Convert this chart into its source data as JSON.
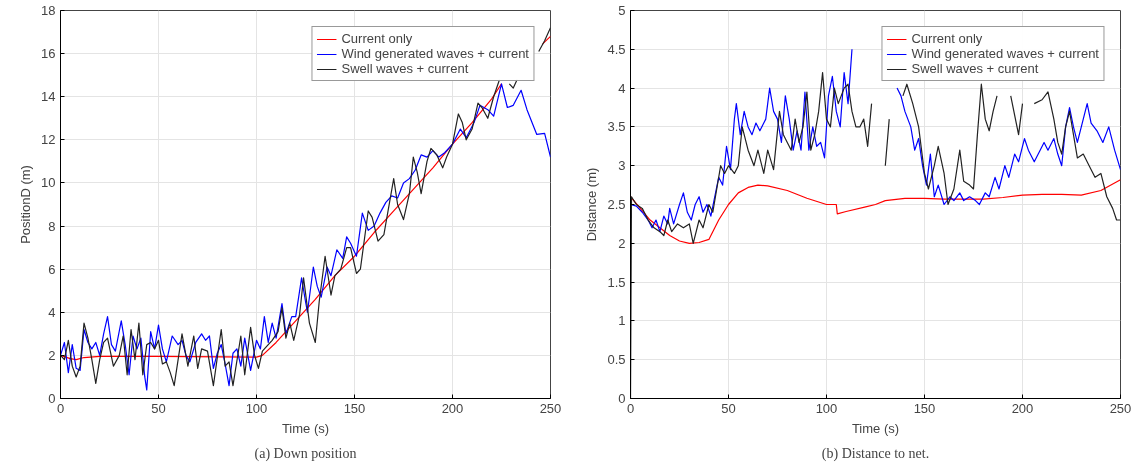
{
  "chart_data": [
    {
      "type": "line",
      "title": "(a) Down position",
      "xlabel": "Time (s)",
      "ylabel": "PositionD (m)",
      "xlim": [
        0,
        250
      ],
      "ylim": [
        0,
        18
      ],
      "xticks": [
        0,
        50,
        100,
        150,
        200,
        250
      ],
      "yticks": [
        0,
        2,
        4,
        6,
        8,
        10,
        12,
        14,
        16,
        18
      ],
      "grid": true,
      "legend": "top right",
      "series": [
        {
          "name": "Current only",
          "color": "#ff0000",
          "x": [
            0,
            5,
            8,
            12,
            20,
            50,
            100,
            103,
            110,
            120,
            130,
            140,
            150,
            160,
            170,
            180,
            190,
            200,
            210,
            220,
            225,
            230,
            246,
            250
          ],
          "values": [
            2.0,
            1.85,
            1.8,
            1.9,
            1.95,
            1.95,
            1.92,
            2.0,
            2.6,
            3.6,
            4.6,
            5.7,
            6.6,
            7.7,
            8.7,
            9.7,
            10.7,
            11.8,
            12.8,
            13.9,
            14.6,
            null,
            16.45,
            16.8
          ]
        },
        {
          "name": "Wind generated waves + current",
          "color": "#0000ff",
          "x": [
            0,
            2,
            4,
            6,
            8,
            10,
            12,
            14,
            16,
            18,
            20,
            22,
            24,
            26,
            28,
            31,
            33,
            35,
            37,
            39,
            41,
            43,
            44,
            46,
            48,
            50,
            52,
            54,
            57,
            60,
            62,
            64,
            66,
            69,
            72,
            74,
            76,
            78,
            80,
            82,
            84,
            86,
            88,
            90,
            92,
            94,
            97,
            100,
            102,
            104,
            106,
            108,
            110,
            113,
            115,
            118,
            120,
            123,
            125,
            126,
            129,
            131,
            133,
            136,
            138,
            141,
            144,
            146,
            148,
            151,
            154,
            157,
            160,
            163,
            166,
            169,
            172,
            175,
            178,
            181,
            184,
            187,
            190,
            193,
            196,
            200,
            204,
            207,
            211,
            214,
            218,
            221,
            225,
            228,
            231,
            235,
            238,
            243,
            247,
            250
          ],
          "values": [
            2.0,
            2.6,
            1.2,
            2.5,
            1.4,
            1.3,
            3.2,
            2.6,
            2.3,
            2.6,
            2.0,
            3.0,
            3.8,
            2.5,
            2.2,
            3.6,
            2.5,
            1.1,
            2.9,
            2.3,
            2.8,
            1.0,
            0.4,
            3.1,
            2.3,
            3.4,
            2.3,
            1.7,
            2.9,
            2.5,
            2.7,
            2.0,
            1.7,
            2.6,
            3.0,
            2.7,
            2.9,
            1.4,
            2.1,
            2.5,
            1.6,
            0.6,
            2.1,
            2.3,
            1.5,
            2.8,
            1.3,
            2.7,
            2.3,
            3.8,
            2.6,
            3.5,
            2.8,
            4.4,
            3.0,
            3.8,
            3.8,
            5.6,
            4.5,
            4.0,
            6.1,
            5.2,
            4.7,
            6.1,
            5.7,
            6.9,
            6.5,
            7.5,
            7.2,
            6.6,
            8.6,
            7.8,
            8.0,
            8.6,
            9.1,
            9.4,
            9.3,
            10.0,
            10.2,
            10.6,
            11.3,
            11.2,
            11.5,
            11.2,
            11.4,
            11.8,
            12.5,
            12.1,
            12.8,
            13.6,
            13.4,
            13.1,
            14.6,
            13.5,
            13.6,
            14.3,
            13.4,
            12.25,
            12.3,
            11.2
          ]
        },
        {
          "name": "Swell waves + current",
          "color": "#222222",
          "x": [
            0,
            2,
            4,
            6,
            8,
            10,
            12,
            14,
            16,
            18,
            20,
            22,
            24,
            27,
            30,
            32,
            34,
            36,
            38,
            40,
            42,
            44,
            46,
            48,
            50,
            52,
            54,
            56,
            58,
            62,
            65,
            68,
            70,
            72,
            75,
            78,
            82,
            84,
            86,
            88,
            92,
            94,
            97,
            99,
            101,
            103,
            106,
            108,
            111,
            113,
            115,
            117,
            119,
            122,
            124,
            127,
            130,
            132,
            135,
            138,
            140,
            143,
            146,
            148,
            151,
            153,
            157,
            159,
            162,
            165,
            170,
            172,
            175,
            178,
            180,
            182,
            184,
            187,
            189,
            192,
            195,
            197,
            200,
            203,
            205,
            207,
            210,
            213,
            215,
            218,
            221,
            224,
            225,
            229,
            231,
            233,
            234,
            244,
            247,
            250
          ],
          "values": [
            2.0,
            1.8,
            2.7,
            1.5,
            1.0,
            1.5,
            3.5,
            2.8,
            1.8,
            0.7,
            1.8,
            2.6,
            2.8,
            1.5,
            2.0,
            2.9,
            1.1,
            3.2,
            1.8,
            3.5,
            1.1,
            2.5,
            2.6,
            2.3,
            2.7,
            1.6,
            1.7,
            1.2,
            0.6,
            3.0,
            1.5,
            2.9,
            1.4,
            2.3,
            2.2,
            0.6,
            3.2,
            1.5,
            1.7,
            0.6,
            2.9,
            1.1,
            3.3,
            2.0,
            1.4,
            2.2,
            2.5,
            2.7,
            3.1,
            4.2,
            2.8,
            3.5,
            2.7,
            3.9,
            5.6,
            3.5,
            2.6,
            4.5,
            6.6,
            4.8,
            5.7,
            6.0,
            7.0,
            7.0,
            5.8,
            6.0,
            8.7,
            8.4,
            7.3,
            7.6,
            10.2,
            9.0,
            8.3,
            9.5,
            11.2,
            10.5,
            9.5,
            11.0,
            11.6,
            11.3,
            10.7,
            11.2,
            11.8,
            13.2,
            12.8,
            12.0,
            12.5,
            13.7,
            13.5,
            13.0,
            14.0,
            14.8,
            null,
            14.6,
            14.4,
            14.8,
            null,
            16.1,
            16.6,
            17.2
          ]
        }
      ]
    },
    {
      "type": "line",
      "title": "(b) Distance to net.",
      "xlabel": "Time (s)",
      "ylabel": "Distance (m)",
      "xlim": [
        0,
        250
      ],
      "ylim": [
        0,
        5
      ],
      "xticks": [
        0,
        50,
        100,
        150,
        200,
        250
      ],
      "yticks": [
        0,
        0.5,
        1,
        1.5,
        2,
        2.5,
        3,
        3.5,
        4,
        4.5,
        5
      ],
      "grid": true,
      "legend": "top right",
      "series": [
        {
          "name": "Current only",
          "color": "#ff0000",
          "x": [
            0,
            5,
            10,
            15,
            20,
            25,
            30,
            35,
            40,
            45,
            50,
            55,
            60,
            65,
            70,
            80,
            90,
            100,
            105,
            105.5,
            110,
            120,
            125,
            130,
            140,
            150,
            160,
            170,
            180,
            190,
            200,
            210,
            220,
            230,
            240,
            250
          ],
          "values": [
            2.6,
            2.45,
            2.3,
            2.2,
            2.1,
            2.03,
            2.0,
            2.01,
            2.05,
            2.3,
            2.5,
            2.65,
            2.72,
            2.75,
            2.74,
            2.68,
            2.58,
            2.5,
            2.5,
            2.38,
            2.41,
            2.47,
            2.5,
            2.55,
            2.58,
            2.58,
            2.57,
            2.57,
            2.57,
            2.59,
            2.62,
            2.63,
            2.63,
            2.62,
            2.68,
            2.82
          ]
        },
        {
          "name": "Wind generated waves + current",
          "color": "#0000ff",
          "x": [
            0,
            3,
            6,
            9,
            11,
            13,
            15,
            17,
            19,
            20,
            22,
            25,
            27,
            29,
            31,
            33,
            35,
            37,
            39,
            41,
            43,
            45,
            47,
            49,
            51,
            53,
            54,
            56,
            58,
            60,
            62,
            64,
            66,
            69,
            71,
            73,
            75,
            77,
            79,
            81,
            83,
            85,
            87,
            89,
            91,
            93,
            95,
            97,
            99,
            101,
            103,
            105,
            107,
            109,
            111,
            113,
            114,
            134,
            136,
            138,
            140,
            143,
            145,
            147,
            149,
            151,
            153,
            155,
            157,
            160,
            163,
            165,
            168,
            170,
            173,
            176,
            178,
            181,
            183,
            186,
            188,
            191,
            193,
            196,
            198,
            201,
            203,
            206,
            209,
            211,
            213,
            216,
            218,
            220,
            222,
            224,
            226,
            228,
            231,
            233,
            235,
            238,
            241,
            244,
            247,
            250
          ],
          "values": [
            2.5,
            2.48,
            2.4,
            2.3,
            2.2,
            2.3,
            2.15,
            2.35,
            2.25,
            2.45,
            2.25,
            2.5,
            2.65,
            2.4,
            2.3,
            2.5,
            2.6,
            2.4,
            2.5,
            2.35,
            2.6,
            2.85,
            2.75,
            3.25,
            2.95,
            3.6,
            3.8,
            3.4,
            3.7,
            3.5,
            3.4,
            3.55,
            3.45,
            3.6,
            4.0,
            3.7,
            3.6,
            3.3,
            3.9,
            3.6,
            3.2,
            3.45,
            3.2,
            3.95,
            3.2,
            3.5,
            3.25,
            3.3,
            3.1,
            3.9,
            4.15,
            3.7,
            3.5,
            4.2,
            3.8,
            4.5,
            null,
            null,
            4.0,
            3.9,
            3.7,
            3.5,
            3.2,
            3.35,
            3.0,
            2.75,
            3.15,
            2.6,
            2.75,
            2.5,
            2.6,
            2.55,
            2.65,
            2.55,
            2.6,
            2.55,
            2.5,
            2.65,
            2.6,
            2.85,
            2.7,
            3.0,
            2.85,
            3.15,
            3.05,
            3.35,
            3.2,
            3.05,
            3.2,
            3.3,
            3.2,
            3.35,
            3.15,
            3.0,
            3.5,
            3.75,
            3.5,
            3.3,
            3.6,
            3.8,
            3.55,
            3.45,
            3.3,
            3.5,
            3.2,
            2.95
          ]
        },
        {
          "name": "Swell waves + current",
          "color": "#222222",
          "x": [
            0,
            0.5,
            3,
            6,
            9,
            12,
            15,
            17,
            19,
            21,
            24,
            27,
            30,
            32,
            35,
            37,
            40,
            42,
            44,
            46,
            48,
            50,
            53,
            55,
            57,
            60,
            63,
            65,
            68,
            70,
            73,
            76,
            78,
            80,
            82,
            84,
            86,
            88,
            90,
            92,
            94,
            96,
            98,
            100,
            102,
            104,
            106,
            109,
            111,
            113,
            115,
            117,
            119,
            121,
            123,
            124,
            128,
            130,
            132,
            134,
            137,
            139,
            141,
            144,
            147,
            150,
            152,
            155,
            157,
            160,
            162,
            165,
            168,
            170,
            173,
            175,
            177,
            179,
            181,
            183,
            185,
            187,
            188,
            192,
            194,
            198,
            200,
            201,
            204,
            206,
            210,
            213,
            216,
            218,
            220,
            222,
            224,
            226,
            228,
            231,
            234,
            237,
            240,
            243,
            246,
            248,
            250
          ],
          "values": [
            0,
            2.6,
            2.5,
            2.45,
            2.3,
            2.2,
            2.15,
            2.1,
            2.3,
            2.15,
            2.25,
            2.2,
            2.25,
            2.0,
            2.3,
            2.2,
            2.5,
            2.4,
            2.7,
            3.0,
            2.9,
            3.0,
            2.9,
            3.0,
            3.5,
            3.2,
            3.0,
            3.2,
            2.9,
            3.2,
            2.95,
            3.7,
            3.4,
            3.3,
            3.2,
            3.6,
            3.3,
            3.5,
            3.95,
            3.2,
            3.4,
            3.7,
            4.2,
            3.6,
            3.5,
            4.0,
            3.8,
            4.0,
            4.05,
            3.7,
            3.5,
            3.5,
            3.6,
            3.25,
            3.8,
            null,
            null,
            3.0,
            3.6,
            null,
            null,
            3.9,
            4.05,
            3.8,
            3.5,
            2.9,
            2.7,
            3.0,
            3.25,
            2.9,
            2.5,
            2.7,
            3.2,
            2.8,
            2.75,
            2.7,
            3.4,
            4.05,
            3.6,
            3.45,
            3.7,
            3.9,
            null,
            null,
            3.9,
            3.4,
            3.8,
            null,
            null,
            3.8,
            3.85,
            3.95,
            3.6,
            3.3,
            3.15,
            3.5,
            3.7,
            3.4,
            3.1,
            3.15,
            3.0,
            2.85,
            2.9,
            2.6,
            2.45,
            2.3,
            2.3
          ]
        }
      ]
    }
  ]
}
